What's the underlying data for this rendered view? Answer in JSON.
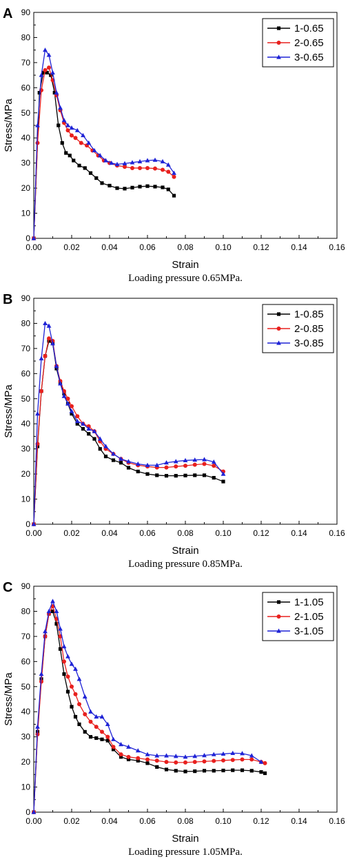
{
  "chart_data": [
    {
      "type": "line",
      "panel_label": "A",
      "caption": "Loading pressure 0.65MPa.",
      "xlabel": "Strain",
      "ylabel": "Stress/MPa",
      "xlim": [
        0,
        0.16
      ],
      "ylim": [
        0,
        90
      ],
      "xticks": [
        "0.00",
        "0.02",
        "0.04",
        "0.06",
        "0.08",
        "0.10",
        "0.12",
        "0.14",
        "0.16"
      ],
      "yticks": [
        "0",
        "10",
        "20",
        "30",
        "40",
        "50",
        "60",
        "70",
        "80",
        "90"
      ],
      "legend_position": "top-right",
      "grid": false,
      "series": [
        {
          "name": "1-0.65",
          "color": "#000000",
          "marker": "square",
          "x": [
            0,
            0.003,
            0.005,
            0.007,
            0.009,
            0.011,
            0.013,
            0.015,
            0.017,
            0.019,
            0.021,
            0.024,
            0.027,
            0.03,
            0.033,
            0.036,
            0.04,
            0.044,
            0.048,
            0.052,
            0.056,
            0.06,
            0.064,
            0.068,
            0.071,
            0.074
          ],
          "y": [
            0,
            58,
            66,
            66,
            65,
            58,
            45,
            38,
            34,
            33,
            31,
            29,
            28,
            26,
            24,
            22,
            21,
            20,
            19.8,
            20.2,
            20.6,
            20.8,
            20.6,
            20.3,
            19.5,
            17
          ]
        },
        {
          "name": "2-0.65",
          "color": "#e8201e",
          "marker": "circle",
          "x": [
            0,
            0.002,
            0.004,
            0.006,
            0.008,
            0.01,
            0.012,
            0.014,
            0.016,
            0.018,
            0.02,
            0.022,
            0.025,
            0.028,
            0.031,
            0.034,
            0.037,
            0.04,
            0.044,
            0.048,
            0.052,
            0.056,
            0.06,
            0.064,
            0.068,
            0.071,
            0.074
          ],
          "y": [
            0,
            38,
            59,
            67,
            68,
            63,
            57,
            51,
            46,
            43,
            41,
            40,
            38,
            37,
            35,
            33,
            31,
            30,
            29,
            28.5,
            28,
            28,
            28,
            27.8,
            27.3,
            26.5,
            24.5
          ]
        },
        {
          "name": "3-0.65",
          "color": "#1f23d6",
          "marker": "triangle",
          "x": [
            0,
            0.002,
            0.004,
            0.006,
            0.008,
            0.01,
            0.012,
            0.014,
            0.016,
            0.018,
            0.02,
            0.023,
            0.026,
            0.029,
            0.032,
            0.035,
            0.038,
            0.041,
            0.044,
            0.048,
            0.052,
            0.056,
            0.06,
            0.064,
            0.068,
            0.071,
            0.074
          ],
          "y": [
            0,
            45,
            65,
            75,
            73,
            66,
            58,
            52,
            47,
            45,
            44,
            43,
            41,
            38,
            35,
            33,
            31,
            30,
            29.5,
            29.8,
            30.2,
            30.6,
            31,
            31.2,
            30.6,
            29.3,
            26
          ]
        }
      ]
    },
    {
      "type": "line",
      "panel_label": "B",
      "caption": "Loading pressure 0.85MPa.",
      "xlabel": "Strain",
      "ylabel": "Stress/MPa",
      "xlim": [
        0,
        0.16
      ],
      "ylim": [
        0,
        90
      ],
      "xticks": [
        "0.00",
        "0.02",
        "0.04",
        "0.06",
        "0.08",
        "0.10",
        "0.12",
        "0.14",
        "0.16"
      ],
      "yticks": [
        "0",
        "10",
        "20",
        "30",
        "40",
        "50",
        "60",
        "70",
        "80",
        "90"
      ],
      "legend_position": "top-right",
      "grid": false,
      "series": [
        {
          "name": "1-0.85",
          "color": "#000000",
          "marker": "square",
          "x": [
            0,
            0.002,
            0.004,
            0.006,
            0.008,
            0.01,
            0.012,
            0.014,
            0.016,
            0.018,
            0.02,
            0.023,
            0.026,
            0.029,
            0.032,
            0.035,
            0.038,
            0.042,
            0.046,
            0.05,
            0.055,
            0.06,
            0.065,
            0.07,
            0.075,
            0.08,
            0.085,
            0.09,
            0.095,
            0.1
          ],
          "y": [
            0,
            31,
            53,
            67,
            73,
            72,
            62,
            56,
            52,
            48,
            44,
            40,
            38,
            36,
            34,
            30,
            27,
            25.5,
            24.5,
            22.5,
            21,
            20,
            19.5,
            19.3,
            19.3,
            19.4,
            19.5,
            19.5,
            18.5,
            17
          ]
        },
        {
          "name": "2-0.85",
          "color": "#e8201e",
          "marker": "circle",
          "x": [
            0,
            0.002,
            0.004,
            0.006,
            0.008,
            0.01,
            0.012,
            0.014,
            0.016,
            0.018,
            0.02,
            0.023,
            0.026,
            0.029,
            0.032,
            0.035,
            0.038,
            0.042,
            0.046,
            0.05,
            0.055,
            0.06,
            0.065,
            0.07,
            0.075,
            0.08,
            0.085,
            0.09,
            0.095,
            0.1
          ],
          "y": [
            0,
            32,
            53,
            67,
            74,
            73,
            63,
            57,
            53,
            50,
            47,
            43,
            40,
            39,
            37,
            33,
            30,
            28,
            26,
            24.5,
            23.5,
            23,
            22.6,
            22.6,
            23,
            23.3,
            23.7,
            24,
            23.3,
            21
          ]
        },
        {
          "name": "3-0.85",
          "color": "#1f23d6",
          "marker": "triangle",
          "x": [
            0,
            0.002,
            0.004,
            0.006,
            0.008,
            0.01,
            0.012,
            0.014,
            0.016,
            0.018,
            0.02,
            0.023,
            0.026,
            0.029,
            0.032,
            0.035,
            0.038,
            0.042,
            0.046,
            0.05,
            0.055,
            0.06,
            0.065,
            0.07,
            0.075,
            0.08,
            0.085,
            0.09,
            0.095,
            0.1
          ],
          "y": [
            0,
            44,
            66,
            80,
            79,
            72,
            63,
            56,
            51,
            48,
            45,
            41,
            40,
            38,
            37,
            34,
            31,
            28,
            26,
            25,
            24,
            23.5,
            23.5,
            24.5,
            25,
            25.4,
            25.6,
            25.8,
            24.8,
            20
          ]
        }
      ]
    },
    {
      "type": "line",
      "panel_label": "C",
      "caption": "Loading pressure 1.05MPa.",
      "xlabel": "Strain",
      "ylabel": "Stress/MPa",
      "xlim": [
        0,
        0.16
      ],
      "ylim": [
        0,
        90
      ],
      "xticks": [
        "0.00",
        "0.02",
        "0.04",
        "0.06",
        "0.08",
        "0.10",
        "0.12",
        "0.14",
        "0.16"
      ],
      "yticks": [
        "0",
        "10",
        "20",
        "30",
        "40",
        "50",
        "60",
        "70",
        "80",
        "90"
      ],
      "legend_position": "top-right",
      "grid": false,
      "series": [
        {
          "name": "1-1.05",
          "color": "#000000",
          "marker": "square",
          "x": [
            0,
            0.002,
            0.004,
            0.006,
            0.008,
            0.01,
            0.012,
            0.014,
            0.016,
            0.018,
            0.02,
            0.022,
            0.024,
            0.027,
            0.03,
            0.033,
            0.036,
            0.039,
            0.042,
            0.046,
            0.05,
            0.055,
            0.06,
            0.065,
            0.07,
            0.075,
            0.08,
            0.085,
            0.09,
            0.095,
            0.1,
            0.105,
            0.11,
            0.115,
            0.12,
            0.122
          ],
          "y": [
            0,
            32,
            53,
            70,
            79,
            80,
            75,
            65,
            55,
            48,
            42,
            38,
            35,
            32,
            30,
            29.5,
            29,
            28.5,
            25,
            22,
            21,
            20.5,
            19.5,
            18,
            17,
            16.5,
            16.2,
            16.3,
            16.5,
            16.5,
            16.6,
            16.7,
            16.7,
            16.5,
            16,
            15.5
          ]
        },
        {
          "name": "2-1.05",
          "color": "#e8201e",
          "marker": "circle",
          "x": [
            0,
            0.002,
            0.004,
            0.006,
            0.008,
            0.01,
            0.012,
            0.014,
            0.016,
            0.018,
            0.02,
            0.022,
            0.024,
            0.027,
            0.03,
            0.033,
            0.036,
            0.039,
            0.042,
            0.046,
            0.05,
            0.055,
            0.06,
            0.065,
            0.07,
            0.075,
            0.08,
            0.085,
            0.09,
            0.095,
            0.1,
            0.105,
            0.11,
            0.115,
            0.12,
            0.122
          ],
          "y": [
            0,
            31,
            52,
            70,
            79,
            82,
            77,
            70,
            60,
            54,
            50,
            47,
            43,
            39,
            36,
            34,
            32,
            30,
            26,
            23,
            22,
            21.5,
            21,
            20.5,
            20,
            19.8,
            19.8,
            20,
            20.2,
            20.4,
            20.6,
            20.8,
            21,
            21,
            20,
            19.5
          ]
        },
        {
          "name": "3-1.05",
          "color": "#1f23d6",
          "marker": "triangle",
          "x": [
            0,
            0.002,
            0.004,
            0.006,
            0.008,
            0.01,
            0.012,
            0.014,
            0.016,
            0.018,
            0.02,
            0.022,
            0.024,
            0.027,
            0.03,
            0.033,
            0.036,
            0.039,
            0.042,
            0.046,
            0.05,
            0.055,
            0.06,
            0.065,
            0.07,
            0.075,
            0.08,
            0.085,
            0.09,
            0.095,
            0.1,
            0.105,
            0.11,
            0.115,
            0.12
          ],
          "y": [
            0,
            34,
            55,
            72,
            80,
            84,
            80,
            73,
            66,
            62,
            59,
            57,
            53,
            46,
            40,
            38,
            38,
            35,
            29,
            27,
            26,
            24.5,
            23,
            22.5,
            22.5,
            22.3,
            22,
            22.3,
            22.6,
            23,
            23.2,
            23.5,
            23.4,
            22.5,
            20
          ]
        }
      ]
    }
  ]
}
